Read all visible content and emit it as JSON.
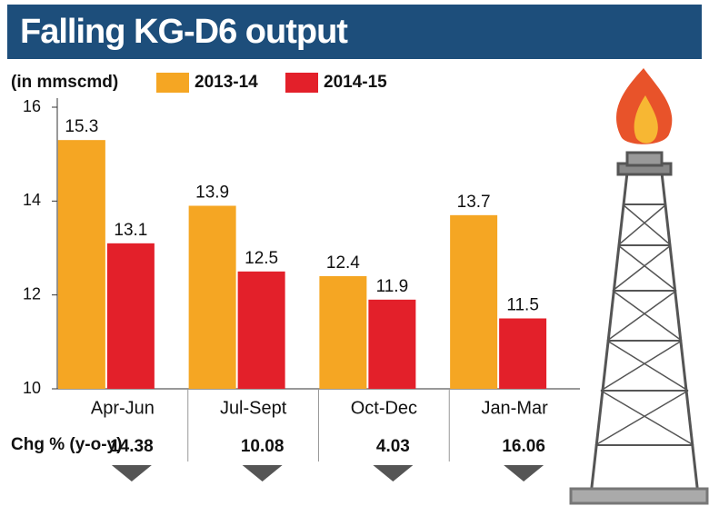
{
  "chart_data": {
    "type": "bar",
    "title": "Falling KG-D6 output",
    "unit_label": "(in mmscmd)",
    "categories": [
      "Apr-Jun",
      "Jul-Sept",
      "Oct-Dec",
      "Jan-Mar"
    ],
    "series": [
      {
        "name": "2013-14",
        "color": "#f5a623",
        "values": [
          15.3,
          13.9,
          12.4,
          13.7
        ]
      },
      {
        "name": "2014-15",
        "color": "#e3202a",
        "values": [
          13.1,
          12.5,
          11.9,
          11.5
        ]
      }
    ],
    "ylim": [
      10,
      16
    ],
    "yticks": [
      10,
      12,
      14,
      16
    ],
    "change_label": "Chg % (y-o-y)",
    "change_values": [
      14.38,
      10.08,
      4.03,
      16.06
    ]
  }
}
